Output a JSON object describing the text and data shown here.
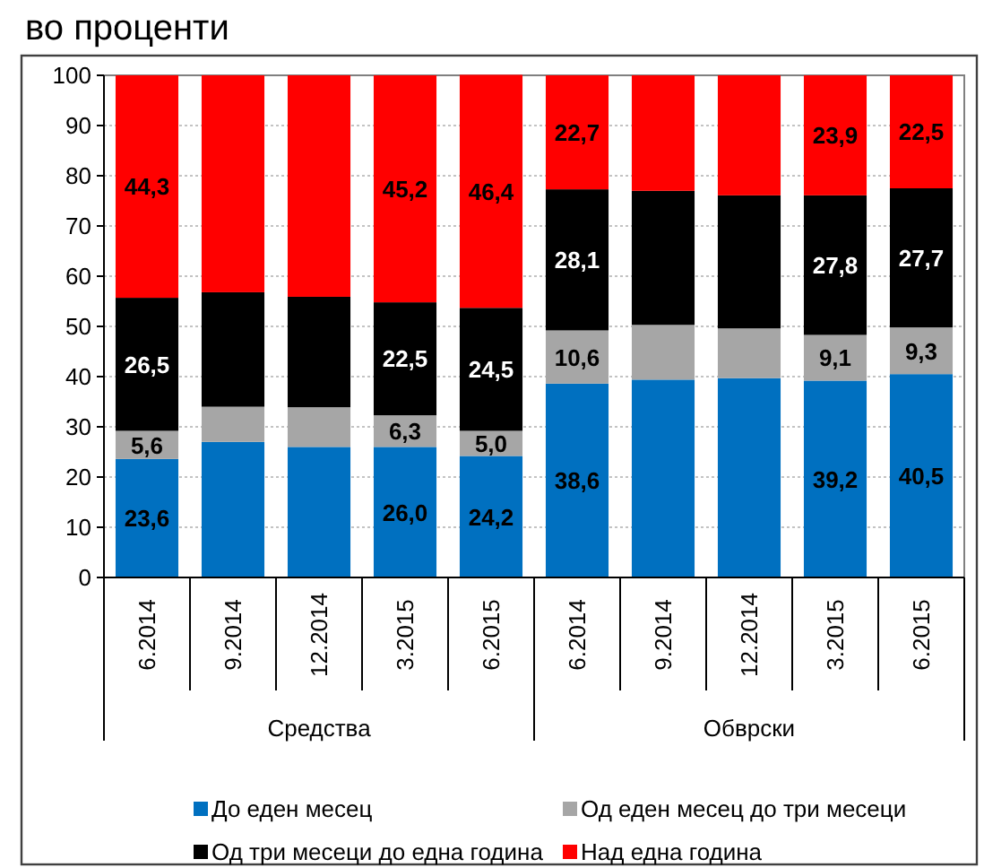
{
  "chart_data": {
    "type": "bar",
    "title": "во проценти",
    "categories": [
      "6.2014",
      "9.2014",
      "12.2014",
      "3.2015",
      "6.2015",
      "6.2014",
      "9.2014",
      "12.2014",
      "3.2015",
      "6.2015"
    ],
    "annotations": [
      "Средства",
      "Обврски"
    ],
    "stacked": true,
    "ylim": [
      0,
      100
    ],
    "yticks": [
      0,
      10,
      20,
      30,
      40,
      50,
      60,
      70,
      80,
      90,
      100
    ],
    "grid": "y",
    "legend": "bottom",
    "series": [
      {
        "name": "До еден месец",
        "color": "#0070c0",
        "values": [
          23.6,
          27.0,
          26.0,
          26.0,
          24.2,
          38.6,
          39.4,
          39.7,
          39.2,
          40.5
        ],
        "value_labels": [
          "23,6",
          null,
          null,
          "26,0",
          "24,2",
          "38,6",
          null,
          null,
          "39,2",
          "40,5"
        ]
      },
      {
        "name": "Од еден месец до три месеци",
        "color": "#a6a6a6",
        "values": [
          5.6,
          7.0,
          7.9,
          6.3,
          5.0,
          10.6,
          10.9,
          9.9,
          9.1,
          9.3
        ],
        "value_labels": [
          "5,6",
          null,
          null,
          "6,3",
          "5,0",
          "10,6",
          null,
          null,
          "9,1",
          "9,3"
        ]
      },
      {
        "name": "Од три месеци до една година",
        "color": "#000000",
        "values": [
          26.5,
          22.8,
          22.0,
          22.5,
          24.5,
          28.1,
          26.7,
          26.5,
          27.8,
          27.7
        ],
        "value_labels": [
          "26,5",
          null,
          null,
          "22,5",
          "24,5",
          "28,1",
          null,
          null,
          "27,8",
          "27,7"
        ]
      },
      {
        "name": "Над една година",
        "color": "#ff0000",
        "values": [
          44.3,
          43.2,
          44.1,
          45.2,
          46.4,
          22.7,
          23.0,
          23.9,
          23.9,
          22.5
        ],
        "value_labels": [
          "44,3",
          null,
          null,
          "45,2",
          "46,4",
          "22,7",
          null,
          null,
          "23,9",
          "22,5"
        ]
      }
    ]
  }
}
